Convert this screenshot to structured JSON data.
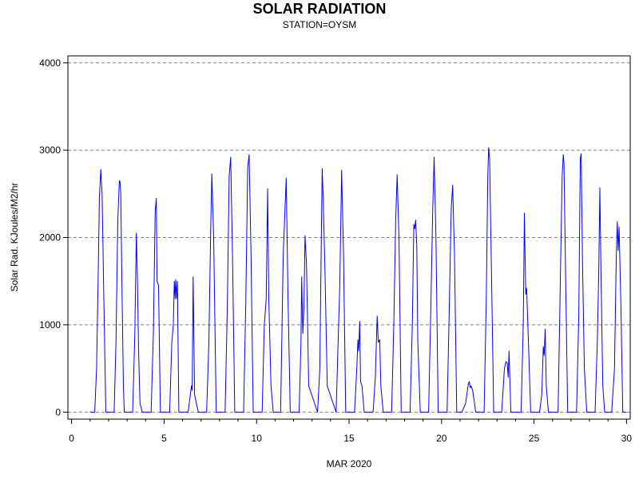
{
  "chart_data": {
    "type": "line",
    "title": "SOLAR RADIATION",
    "subtitle": "STATION=OYSM",
    "xlabel": "MAR 2020",
    "ylabel": "Solar Rad. KJoules/M2/hr",
    "xlim": [
      -0.2,
      30.2
    ],
    "ylim": [
      -80,
      4080
    ],
    "x_ticks": [
      0,
      5,
      10,
      15,
      20,
      25,
      30
    ],
    "y_ticks": [
      0,
      1000,
      2000,
      3000,
      4000
    ],
    "grid": {
      "horizontal_dashed": true,
      "vertical": false
    },
    "colors": {
      "line": "#0000ff",
      "grid": "#808080",
      "axis": "#000000"
    },
    "series": [
      {
        "x": [
          1.0,
          1.25,
          1.35,
          1.45,
          1.5,
          1.58,
          1.65,
          1.75,
          1.85,
          2.3,
          2.4,
          2.5,
          2.58,
          2.62,
          2.66,
          2.72,
          2.8,
          2.85,
          3.3,
          3.42,
          3.5,
          3.56,
          3.62,
          3.7,
          3.82,
          4.3,
          4.42,
          4.52,
          4.58,
          4.62,
          4.7,
          4.8,
          5.3,
          5.42,
          5.5,
          5.55,
          5.6,
          5.63,
          5.68,
          5.72,
          5.8,
          6.3,
          6.42,
          6.48,
          6.52,
          6.57,
          6.65,
          6.85,
          7.3,
          7.42,
          7.52,
          7.58,
          7.68,
          7.82,
          8.3,
          8.42,
          8.52,
          8.6,
          8.7,
          8.82,
          9.3,
          9.42,
          9.52,
          9.6,
          9.7,
          9.82,
          10.3,
          10.42,
          10.52,
          10.6,
          10.66,
          10.78,
          10.9,
          11.3,
          11.44,
          11.54,
          11.6,
          11.7,
          11.82,
          12.3,
          12.4,
          12.44,
          12.5,
          12.56,
          12.62,
          12.7,
          12.82,
          13.3,
          13.42,
          13.5,
          13.55,
          13.6,
          13.7,
          13.82,
          14.3,
          14.42,
          14.5,
          14.6,
          14.7,
          14.82,
          15.3,
          15.42,
          15.48,
          15.52,
          15.58,
          15.62,
          15.7,
          15.82,
          16.3,
          16.42,
          16.52,
          16.58,
          16.66,
          16.72,
          16.85,
          17.3,
          17.42,
          17.52,
          17.6,
          17.7,
          17.82,
          18.3,
          18.42,
          18.5,
          18.55,
          18.6,
          18.66,
          18.72,
          18.85,
          19.3,
          19.42,
          19.52,
          19.6,
          19.7,
          19.82,
          20.3,
          20.42,
          20.52,
          20.6,
          20.7,
          20.82,
          21.1,
          21.3,
          21.45,
          21.5,
          21.55,
          21.6,
          21.68,
          21.85,
          22.3,
          22.42,
          22.5,
          22.55,
          22.6,
          22.7,
          22.82,
          23.25,
          23.4,
          23.48,
          23.55,
          23.6,
          23.65,
          23.75,
          24.3,
          24.42,
          24.48,
          24.55,
          24.6,
          24.7,
          24.82,
          25.3,
          25.42,
          25.5,
          25.55,
          25.6,
          25.66,
          25.78,
          26.3,
          26.42,
          26.52,
          26.58,
          26.62,
          26.7,
          26.82,
          27.3,
          27.42,
          27.5,
          27.55,
          27.62,
          27.72,
          27.85,
          28.3,
          28.42,
          28.5,
          28.56,
          28.62,
          28.72,
          28.82,
          29.2,
          29.35,
          29.45,
          29.5,
          29.55,
          29.6,
          29.7,
          29.8,
          30.0
        ],
        "values": [
          0,
          0,
          500,
          1700,
          2450,
          2780,
          2500,
          1200,
          0,
          0,
          800,
          2200,
          2650,
          2640,
          2500,
          1500,
          300,
          0,
          0,
          900,
          2050,
          1500,
          700,
          100,
          0,
          0,
          900,
          2300,
          2450,
          1500,
          1450,
          0,
          0,
          800,
          1000,
          1500,
          1300,
          1520,
          1300,
          1500,
          0,
          0,
          200,
          300,
          250,
          1550,
          200,
          0,
          0,
          800,
          2100,
          2730,
          2000,
          0,
          0,
          1200,
          2700,
          2920,
          1800,
          0,
          0,
          1300,
          2800,
          2950,
          1800,
          0,
          0,
          1000,
          1300,
          2560,
          1300,
          300,
          0,
          0,
          1800,
          2350,
          2680,
          1300,
          0,
          0,
          800,
          1550,
          900,
          1200,
          2020,
          1700,
          300,
          0,
          500,
          2000,
          2790,
          2450,
          1600,
          300,
          0,
          900,
          1450,
          2770,
          1800,
          0,
          0,
          500,
          830,
          700,
          1040,
          350,
          300,
          0,
          0,
          400,
          1100,
          800,
          830,
          300,
          0,
          0,
          1000,
          2200,
          2720,
          2000,
          0,
          0,
          1000,
          2150,
          2100,
          2200,
          1900,
          800,
          0,
          0,
          1200,
          2300,
          2920,
          2000,
          0,
          0,
          1200,
          2300,
          2600,
          1800,
          0,
          0,
          100,
          330,
          350,
          280,
          300,
          250,
          0,
          0,
          1300,
          2700,
          3030,
          2900,
          1600,
          0,
          0,
          500,
          580,
          560,
          400,
          700,
          0,
          0,
          1000,
          2280,
          1350,
          1420,
          800,
          0,
          0,
          200,
          750,
          650,
          950,
          300,
          0,
          0,
          1500,
          2700,
          2950,
          2850,
          1700,
          0,
          0,
          1100,
          2900,
          2960,
          1700,
          500,
          0,
          0,
          800,
          1600,
          2570,
          1600,
          300,
          0,
          0,
          500,
          1800,
          2180,
          1850,
          2120,
          1200,
          0,
          0
        ]
      }
    ]
  }
}
